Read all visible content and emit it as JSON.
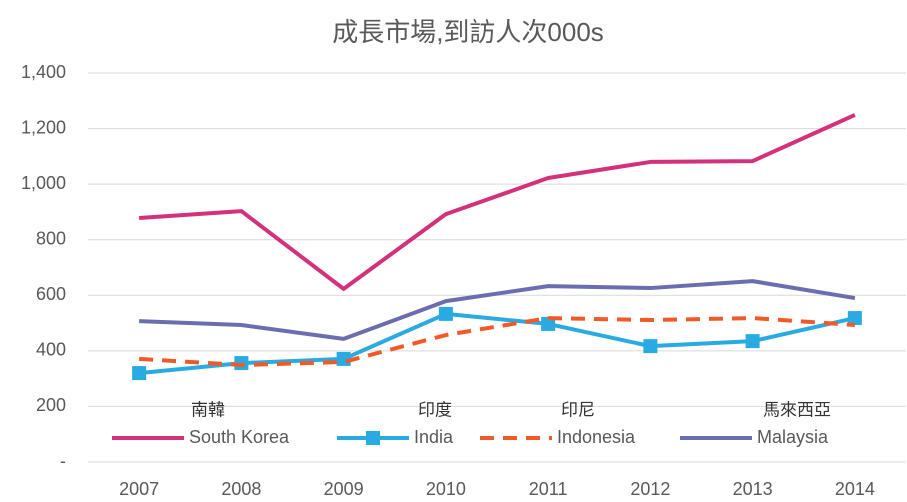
{
  "chart_data": {
    "type": "line",
    "title": "成長市場,到訪人次000s",
    "categories": [
      "2007",
      "2008",
      "2009",
      "2010",
      "2011",
      "2012",
      "2013",
      "2014"
    ],
    "series": [
      {
        "name": "South Korea",
        "color": "#d3317c",
        "values": [
          878,
          903,
          623,
          892,
          1022,
          1080,
          1083,
          1249
        ]
      },
      {
        "name": "India",
        "color": "#29abe2",
        "values": [
          320,
          356,
          371,
          533,
          497,
          417,
          435,
          518
        ]
      },
      {
        "name": "Indonesia",
        "color": "#f05a28",
        "values": [
          371,
          349,
          360,
          457,
          518,
          511,
          518,
          493
        ]
      },
      {
        "name": "Malaysia",
        "color": "#6a6db0",
        "values": [
          507,
          493,
          443,
          579,
          633,
          626,
          651,
          590
        ]
      }
    ],
    "annotations": [
      "南韓",
      "印度",
      "印尼",
      "馬來西亞"
    ],
    "ylim": [
      0,
      1400
    ],
    "yticks": [
      {
        "value": 0,
        "label": "-"
      },
      200,
      400,
      600,
      800,
      {
        "value": 1000,
        "label": "1,000"
      },
      {
        "value": 1200,
        "label": "1,200"
      },
      {
        "value": 1400,
        "label": "1,400"
      }
    ],
    "grid": true
  }
}
